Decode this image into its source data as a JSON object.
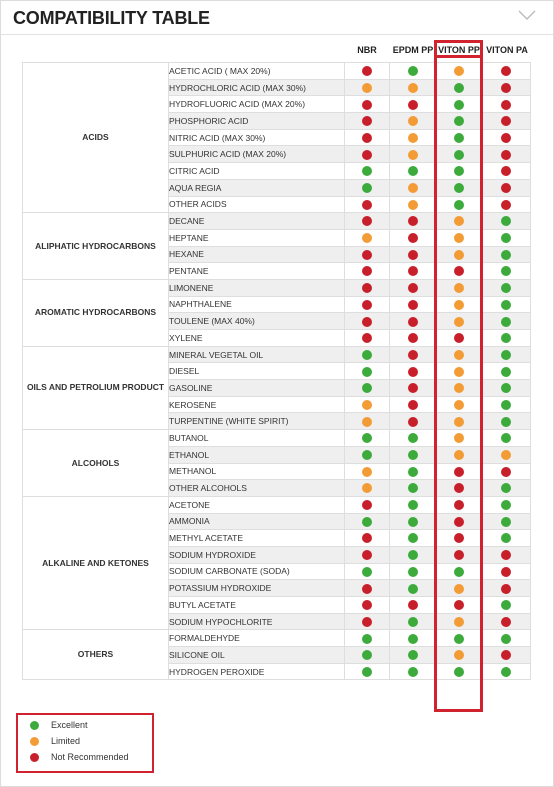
{
  "title": "COMPATIBILITY TABLE",
  "columns": [
    "NBR",
    "EPDM PP",
    "VITON PP",
    "VITON PA"
  ],
  "colors": {
    "E": "#3cab3c",
    "L": "#f39c35",
    "N": "#c8202a"
  },
  "categories": [
    {
      "name": "ACIDS",
      "rows": [
        {
          "substance": "ACETIC ACID ( MAX 20%)",
          "r": [
            "N",
            "E",
            "L",
            "N"
          ]
        },
        {
          "substance": "HYDROCHLORIC ACID (MAX 30%)",
          "r": [
            "L",
            "L",
            "E",
            "N"
          ]
        },
        {
          "substance": "HYDROFLUORIC ACID (MAX 20%)",
          "r": [
            "N",
            "N",
            "E",
            "N"
          ]
        },
        {
          "substance": "PHOSPHORIC ACID",
          "r": [
            "N",
            "L",
            "E",
            "N"
          ]
        },
        {
          "substance": "NITRIC ACID (MAX 30%)",
          "r": [
            "N",
            "L",
            "E",
            "N"
          ]
        },
        {
          "substance": "SULPHURIC ACID (MAX 20%)",
          "r": [
            "N",
            "L",
            "E",
            "N"
          ]
        },
        {
          "substance": "CITRIC ACID",
          "r": [
            "E",
            "E",
            "E",
            "N"
          ]
        },
        {
          "substance": "AQUA REGIA",
          "r": [
            "E",
            "L",
            "E",
            "N"
          ]
        },
        {
          "substance": "OTHER ACIDS",
          "r": [
            "N",
            "L",
            "E",
            "N"
          ]
        }
      ]
    },
    {
      "name": "ALIPHATIC HYDROCARBONS",
      "rows": [
        {
          "substance": "DECANE",
          "r": [
            "N",
            "N",
            "L",
            "E"
          ]
        },
        {
          "substance": "HEPTANE",
          "r": [
            "L",
            "N",
            "L",
            "E"
          ]
        },
        {
          "substance": "HEXANE",
          "r": [
            "N",
            "N",
            "L",
            "E"
          ]
        },
        {
          "substance": "PENTANE",
          "r": [
            "N",
            "N",
            "N",
            "E"
          ]
        }
      ]
    },
    {
      "name": "AROMATIC HYDROCARBONS",
      "rows": [
        {
          "substance": "LIMONENE",
          "r": [
            "N",
            "N",
            "L",
            "E"
          ]
        },
        {
          "substance": "NAPHTHALENE",
          "r": [
            "N",
            "N",
            "L",
            "E"
          ]
        },
        {
          "substance": "TOULENE (MAX 40%)",
          "r": [
            "N",
            "N",
            "L",
            "E"
          ]
        },
        {
          "substance": "XYLENE",
          "r": [
            "N",
            "N",
            "N",
            "E"
          ]
        }
      ]
    },
    {
      "name": "OILS AND PETROLIUM PRODUCT",
      "rows": [
        {
          "substance": "MINERAL VEGETAL OIL",
          "r": [
            "E",
            "N",
            "L",
            "E"
          ]
        },
        {
          "substance": "DIESEL",
          "r": [
            "E",
            "N",
            "L",
            "E"
          ]
        },
        {
          "substance": "GASOLINE",
          "r": [
            "E",
            "N",
            "L",
            "E"
          ]
        },
        {
          "substance": "KEROSENE",
          "r": [
            "L",
            "N",
            "L",
            "E"
          ]
        },
        {
          "substance": "TURPENTINE (WHITE SPIRIT)",
          "r": [
            "L",
            "N",
            "L",
            "E"
          ]
        }
      ]
    },
    {
      "name": "ALCOHOLS",
      "rows": [
        {
          "substance": "BUTANOL",
          "r": [
            "E",
            "E",
            "L",
            "E"
          ]
        },
        {
          "substance": "ETHANOL",
          "r": [
            "E",
            "E",
            "L",
            "L"
          ]
        },
        {
          "substance": "METHANOL",
          "r": [
            "L",
            "E",
            "N",
            "N"
          ]
        },
        {
          "substance": "OTHER ALCOHOLS",
          "r": [
            "L",
            "E",
            "N",
            "E"
          ]
        }
      ]
    },
    {
      "name": "ALKALINE AND KETONES",
      "rows": [
        {
          "substance": "ACETONE",
          "r": [
            "N",
            "E",
            "N",
            "E"
          ]
        },
        {
          "substance": "AMMONIA",
          "r": [
            "E",
            "E",
            "N",
            "E"
          ]
        },
        {
          "substance": "METHYL ACETATE",
          "r": [
            "N",
            "E",
            "N",
            "E"
          ]
        },
        {
          "substance": "SODIUM HYDROXIDE",
          "r": [
            "N",
            "E",
            "N",
            "N"
          ]
        },
        {
          "substance": "SODIUM CARBONATE (SODA)",
          "r": [
            "E",
            "E",
            "E",
            "N"
          ]
        },
        {
          "substance": "POTASSIUM HYDROXIDE",
          "r": [
            "N",
            "E",
            "L",
            "N"
          ]
        },
        {
          "substance": "BUTYL ACETATE",
          "r": [
            "N",
            "N",
            "N",
            "E"
          ]
        },
        {
          "substance": "SODIUM HYPOCHLORITE",
          "r": [
            "N",
            "E",
            "L",
            "N"
          ]
        }
      ]
    },
    {
      "name": "OTHERS",
      "rows": [
        {
          "substance": "FORMALDEHYDE",
          "r": [
            "E",
            "E",
            "E",
            "E"
          ]
        },
        {
          "substance": "SILICONE OIL",
          "r": [
            "E",
            "E",
            "L",
            "N"
          ]
        },
        {
          "substance": "HYDROGEN PEROXIDE",
          "r": [
            "E",
            "E",
            "E",
            "E"
          ]
        }
      ]
    }
  ],
  "legend": [
    {
      "key": "E",
      "label": "Excellent"
    },
    {
      "key": "L",
      "label": "Limited"
    },
    {
      "key": "N",
      "label": "Not Recommended"
    }
  ]
}
